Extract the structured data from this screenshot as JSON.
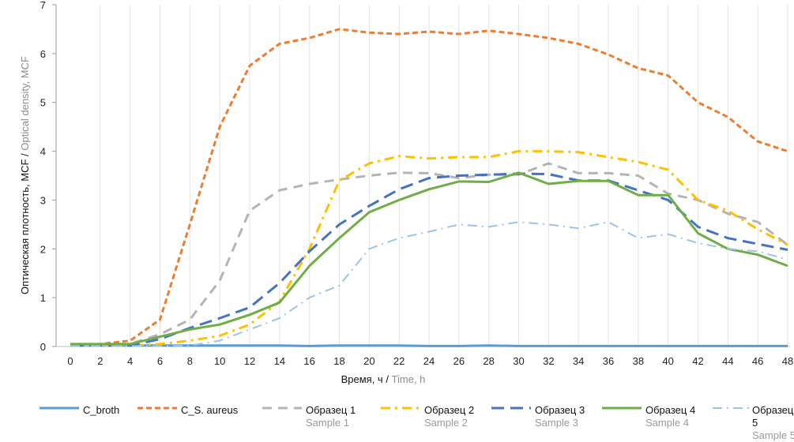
{
  "chart_data": {
    "type": "line",
    "title": "",
    "xlabel_ru": "Время, ч",
    "xlabel_sep": " / ",
    "xlabel_en": "Time, h",
    "ylabel_ru": "Оптическая плотность, MCF",
    "ylabel_sep": " / ",
    "ylabel_en": "Optical density, MCF",
    "ylim": [
      0,
      7
    ],
    "yticks": [
      "0",
      "1",
      "2",
      "3",
      "4",
      "5",
      "6",
      "7"
    ],
    "x": [
      0,
      2,
      4,
      6,
      8,
      10,
      12,
      14,
      16,
      18,
      20,
      22,
      24,
      26,
      28,
      30,
      32,
      34,
      36,
      38,
      40,
      42,
      44,
      46,
      48
    ],
    "xticks": [
      "0",
      "2",
      "4",
      "6",
      "8",
      "10",
      "12",
      "14",
      "16",
      "18",
      "20",
      "22",
      "24",
      "26",
      "28",
      "30",
      "32",
      "34",
      "36",
      "38",
      "40",
      "42",
      "44",
      "46",
      "48"
    ],
    "grid": "vertical",
    "legend_position": "bottom",
    "series": [
      {
        "name": "C_broth",
        "sub": "",
        "color": "#5b9bd5",
        "dash": "",
        "width": 3,
        "values": [
          0.02,
          0.02,
          0.02,
          0.02,
          0.02,
          0.02,
          0.02,
          0.02,
          0.01,
          0.02,
          0.02,
          0.02,
          0.01,
          0.01,
          0.02,
          0.01,
          0.01,
          0.01,
          0.01,
          0.01,
          0.01,
          0.01,
          0.01,
          0.01,
          0.01
        ]
      },
      {
        "name": "C_S. aureus",
        "sub": "",
        "color": "#ed7d31",
        "dash": "7 4",
        "width": 3,
        "values": [
          0.03,
          0.05,
          0.12,
          0.55,
          2.5,
          4.5,
          5.75,
          6.2,
          6.32,
          6.5,
          6.43,
          6.4,
          6.45,
          6.4,
          6.47,
          6.4,
          6.32,
          6.2,
          5.98,
          5.7,
          5.55,
          5.0,
          4.7,
          4.2,
          4.0
        ]
      },
      {
        "name": "Образец 1",
        "sub": "Sample 1",
        "color": "#b4b4b4",
        "dash": "12 8",
        "width": 3,
        "values": [
          0.02,
          0.02,
          0.05,
          0.25,
          0.55,
          1.35,
          2.78,
          3.2,
          3.33,
          3.42,
          3.5,
          3.56,
          3.55,
          3.45,
          3.52,
          3.52,
          3.75,
          3.55,
          3.55,
          3.5,
          3.13,
          3.0,
          2.72,
          2.55,
          2.08
        ]
      },
      {
        "name": "Образец 2",
        "sub": "Sample 2",
        "color": "#ffc000",
        "dash": "12 6 3 6",
        "width": 3,
        "values": [
          0.02,
          0.02,
          0.02,
          0.05,
          0.12,
          0.22,
          0.45,
          0.92,
          2.0,
          3.4,
          3.75,
          3.9,
          3.85,
          3.88,
          3.88,
          4.0,
          4.0,
          3.98,
          3.88,
          3.78,
          3.62,
          3.0,
          2.78,
          2.4,
          2.08
        ]
      },
      {
        "name": "Образец 3",
        "sub": "Sample 3",
        "color": "#4472c4",
        "dash": "16 8",
        "width": 3,
        "values": [
          0.02,
          0.02,
          0.02,
          0.15,
          0.38,
          0.58,
          0.8,
          1.3,
          1.95,
          2.5,
          2.88,
          3.22,
          3.45,
          3.5,
          3.52,
          3.54,
          3.53,
          3.4,
          3.4,
          3.2,
          3.0,
          2.45,
          2.22,
          2.1,
          1.98
        ]
      },
      {
        "name": "Образец 4",
        "sub": "Sample 4",
        "color": "#70ad47",
        "dash": "",
        "width": 3,
        "values": [
          0.05,
          0.05,
          0.05,
          0.2,
          0.35,
          0.45,
          0.65,
          0.9,
          1.65,
          2.22,
          2.75,
          3.0,
          3.22,
          3.38,
          3.37,
          3.56,
          3.33,
          3.39,
          3.39,
          3.1,
          3.1,
          2.32,
          2.0,
          1.88,
          1.65
        ]
      },
      {
        "name": "Образец 5",
        "sub": "Sample 5",
        "color": "#9dc3e6",
        "dash": "12 6 2 6",
        "width": 2,
        "values": [
          0.01,
          0.01,
          0.01,
          0.01,
          0.02,
          0.12,
          0.35,
          0.58,
          1.0,
          1.25,
          2.0,
          2.22,
          2.35,
          2.5,
          2.45,
          2.55,
          2.5,
          2.42,
          2.55,
          2.22,
          2.3,
          2.12,
          2.0,
          1.95,
          1.78
        ]
      }
    ]
  }
}
